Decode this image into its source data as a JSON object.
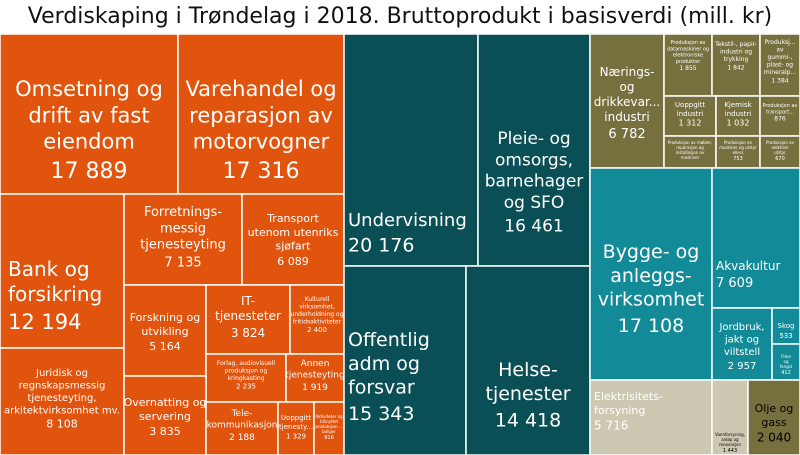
{
  "chart_data": {
    "type": "treemap",
    "title": "Verdiskaping i Trøndelag i 2018. Bruttoprodukt i basisverdi (mill. kr)",
    "colors": {
      "orange": "#e0540e",
      "teal_dark": "#0b4f56",
      "olive": "#76703f",
      "teal": "#128a97",
      "beige": "#cdc8b2"
    },
    "items": [
      {
        "key": "omsetning",
        "label": "Omsetning og drift av fast eiendom",
        "value": "17 889",
        "color": "orange"
      },
      {
        "key": "varehandel",
        "label": "Varehandel og reparasjon av motorvogner",
        "value": "17 316",
        "color": "orange"
      },
      {
        "key": "bank",
        "label": "Bank  og forsikring",
        "value": "12 194",
        "color": "orange"
      },
      {
        "key": "forretning",
        "label": "Forretnings-messig tjenesteyting",
        "value": "7 135",
        "color": "orange"
      },
      {
        "key": "transport_utenom",
        "label": "Transport utenom utenriks sjøfart",
        "value": "6 089",
        "color": "orange"
      },
      {
        "key": "juridisk",
        "label": "Juridisk og regnskapsmessig tjenesteyting, arkitektvirksomhet mv.",
        "value": "8 108",
        "color": "orange"
      },
      {
        "key": "forskning",
        "label": "Forskning og utvikling",
        "value": "5 164",
        "color": "orange"
      },
      {
        "key": "it",
        "label": "IT-tjenesteter",
        "value": "3 824",
        "color": "orange"
      },
      {
        "key": "kulturell",
        "label": "Kulturell virksomhet, underholdning og fritidsaktiviteter",
        "value": "2 400",
        "color": "orange"
      },
      {
        "key": "forlag",
        "label": "Forlag, audiovisuell produksjon og kringkasting",
        "value": "2 235",
        "color": "orange"
      },
      {
        "key": "annen_tj",
        "label": "Annen tjenesteyting",
        "value": "1 919",
        "color": "orange"
      },
      {
        "key": "overnatting",
        "label": "Overnatting og servering",
        "value": "3 835",
        "color": "orange"
      },
      {
        "key": "telekom",
        "label": "Tele-kommunikasjon",
        "value": "2 188",
        "color": "orange"
      },
      {
        "key": "uoppgitt_tj",
        "label": "Uoppgitt tjenesty...",
        "value": "1 329",
        "color": "orange"
      },
      {
        "key": "arenaer",
        "label": "Aktiviteter og tjenester tilknyttet produksjon ... boliger",
        "value": "916",
        "color": "orange"
      },
      {
        "key": "undervisning",
        "label": "Undervisning",
        "value": "20 176",
        "color": "teal_dark"
      },
      {
        "key": "pleie",
        "label": "Pleie- og omsorgs, barnehager og SFO",
        "value": "16 461",
        "color": "teal_dark"
      },
      {
        "key": "offentlig",
        "label": "Offentlig adm og forsvar",
        "value": "15 343",
        "color": "teal_dark"
      },
      {
        "key": "helse",
        "label": "Helse-tjenester",
        "value": "14 418",
        "color": "teal_dark"
      },
      {
        "key": "naering",
        "label": "Nærings- og drikkevar... industri",
        "value": "6 782",
        "color": "olive"
      },
      {
        "key": "datamaskiner",
        "label": "Produksjon av datamaskiner og elektroniske produkter",
        "value": "1 855",
        "color": "olive"
      },
      {
        "key": "tekstil",
        "label": "Tekstil-, papir-industri og trykking",
        "value": "1 842",
        "color": "olive"
      },
      {
        "key": "gummi",
        "label": "Produksj... av gummi-, plast- og mineralp...",
        "value": "1 384",
        "color": "olive"
      },
      {
        "key": "uoppgitt_ind",
        "label": "Uoppgitt industri",
        "value": "1 312",
        "color": "olive"
      },
      {
        "key": "kjemisk",
        "label": "Kjemisk industri",
        "value": "1 032",
        "color": "olive"
      },
      {
        "key": "transportmidler",
        "label": "Produksjon av transport...",
        "value": "876",
        "color": "olive"
      },
      {
        "key": "mobler",
        "label": "Produksjon av møbler, reparasjon og installasjon av maskiner",
        "value": "",
        "color": "olive"
      },
      {
        "key": "maskiner",
        "label": "Produksjon av maskiner og utstyr ellers",
        "value": "753",
        "color": "olive"
      },
      {
        "key": "elektrisk",
        "label": "Produksjon av elektrisk utstyr",
        "value": "670",
        "color": "olive"
      },
      {
        "key": "bygge",
        "label": "Bygge- og anleggs-virksomhet",
        "value": "17 108",
        "color": "teal"
      },
      {
        "key": "akvakultur",
        "label": "Akvakultur",
        "value": "7 609",
        "color": "teal"
      },
      {
        "key": "jordbruk",
        "label": "Jordbruk, jakt og viltstell",
        "value": "2 957",
        "color": "teal"
      },
      {
        "key": "skog",
        "label": "Skog",
        "value": "533",
        "color": "teal"
      },
      {
        "key": "fiske",
        "label": "Fiske og fangst",
        "value": "412",
        "color": "teal"
      },
      {
        "key": "elektrisitet",
        "label": "Elektrisitets-forsyning",
        "value": "5 716",
        "color": "beige"
      },
      {
        "key": "vann",
        "label": "Vannforsyning, avløp og renovasjon",
        "value": "1 443",
        "color": "beige"
      },
      {
        "key": "bergverk",
        "label": "",
        "value": "",
        "color": "beige"
      },
      {
        "key": "olje",
        "label": "Olje og gass",
        "value": "2 040",
        "color": "olive"
      }
    ]
  }
}
